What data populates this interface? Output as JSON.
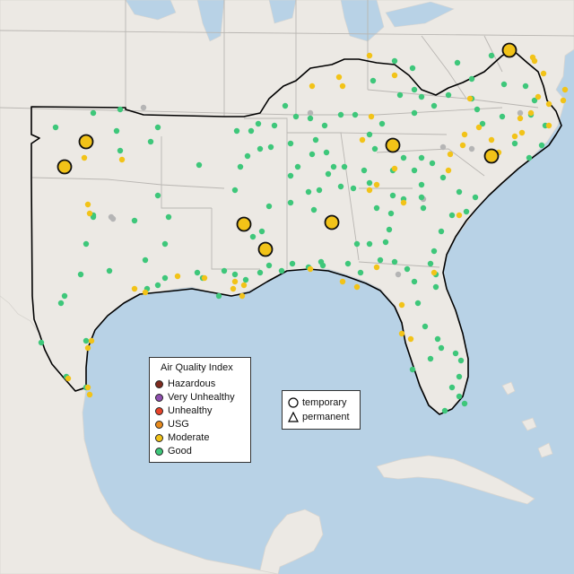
{
  "legend": {
    "title": "Air Quality Index",
    "categories": [
      {
        "label": "Hazardous",
        "color": "#7e2a1e"
      },
      {
        "label": "Very Unhealthy",
        "color": "#8f4fb0"
      },
      {
        "label": "Unhealthy",
        "color": "#e8432a"
      },
      {
        "label": "USG",
        "color": "#e88a1c"
      },
      {
        "label": "Moderate",
        "color": "#f2c318"
      },
      {
        "label": "Good",
        "color": "#3ec77a"
      }
    ]
  },
  "monitor_types": {
    "temporary_label": "temporary",
    "permanent_label": "permanent",
    "temporary_icon": "circle-icon",
    "permanent_icon": "triangle-icon"
  },
  "colors": {
    "ocean": "#b8d2e6",
    "land": "#ece9e4",
    "region_border": "#000000",
    "state_border": "#b9b6b2",
    "no_data": "#b5b5b5"
  }
}
